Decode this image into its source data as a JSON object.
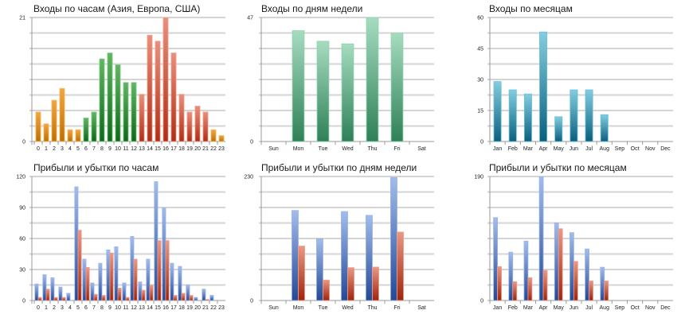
{
  "colors": {
    "orange_top": "#f2a640",
    "orange_bottom": "#c26e00",
    "orange_edge": "#f8c070",
    "green_top": "#62b562",
    "green_bottom": "#0b6a1a",
    "green_edge": "#8fd08f",
    "red_top": "#e98f7c",
    "red_bottom": "#b32d12",
    "red_edge": "#f3a898",
    "mint_top": "#a6dcc0",
    "mint_bottom": "#2e8058",
    "mint_edge": "#8ad4ac",
    "teal_top": "#84cde0",
    "teal_bottom": "#0a5f7e",
    "teal_edge": "#6cc0d8",
    "blue_top": "#a2bcec",
    "blue_bottom": "#234896",
    "blue_edge": "#9ab4e8",
    "loss_top": "#ea9884",
    "loss_bottom": "#9e250e",
    "loss_edge": "#f0a090",
    "grid_dark": "#a8a8a8",
    "grid_light": "#d4d4d4",
    "axis": "#999999"
  },
  "chart_data": [
    {
      "type": "bar",
      "title": "Входы по часам (Азия, Европа, США)",
      "xlabel": "",
      "ylabel": "",
      "categories": [
        "0",
        "1",
        "2",
        "3",
        "4",
        "5",
        "6",
        "7",
        "8",
        "9",
        "10",
        "11",
        "12",
        "13",
        "14",
        "15",
        "16",
        "17",
        "18",
        "19",
        "20",
        "21",
        "22",
        "23"
      ],
      "values": [
        5,
        3,
        7,
        9,
        2,
        2,
        4,
        5,
        14,
        15,
        13,
        10,
        10,
        8,
        18,
        17,
        21,
        15,
        8,
        5,
        6,
        5,
        2,
        1
      ],
      "bar_color_groups": [
        "orange",
        "orange",
        "orange",
        "orange",
        "orange",
        "orange",
        "green",
        "green",
        "green",
        "green",
        "green",
        "green",
        "green",
        "red",
        "red",
        "red",
        "red",
        "red",
        "red",
        "red",
        "red",
        "red",
        "orange",
        "orange"
      ],
      "legend": [
        "Азия",
        "Европа",
        "США"
      ],
      "ylim": [
        0,
        21
      ],
      "y_tick_labels": [
        "0",
        "21"
      ],
      "grid": true
    },
    {
      "type": "bar",
      "title": "Входы по дням недели",
      "xlabel": "",
      "ylabel": "",
      "categories": [
        "Sun",
        "Mon",
        "Tue",
        "Wed",
        "Thu",
        "Fri",
        "Sat"
      ],
      "values": [
        0,
        42,
        38,
        37,
        47,
        41,
        0
      ],
      "ylim": [
        0,
        47
      ],
      "y_tick_labels": [
        "0",
        "47"
      ],
      "grid": true
    },
    {
      "type": "bar",
      "title": "Входы по месяцам",
      "xlabel": "",
      "ylabel": "",
      "categories": [
        "Jan",
        "Feb",
        "Mar",
        "Apr",
        "May",
        "Jun",
        "Jul",
        "Aug",
        "Sep",
        "Oct",
        "Nov",
        "Dec"
      ],
      "values": [
        29,
        25,
        23,
        53,
        12,
        25,
        25,
        13,
        0,
        0,
        0,
        0
      ],
      "ylim": [
        0,
        60
      ],
      "y_tick_labels": [
        "0",
        "15",
        "30",
        "45",
        "60"
      ],
      "grid": true
    },
    {
      "type": "bar",
      "title": "Прибыли и убытки по часам",
      "xlabel": "",
      "ylabel": "",
      "categories": [
        "0",
        "1",
        "2",
        "3",
        "4",
        "5",
        "6",
        "7",
        "8",
        "9",
        "10",
        "11",
        "12",
        "13",
        "14",
        "15",
        "16",
        "17",
        "18",
        "19",
        "20",
        "21",
        "22",
        "23"
      ],
      "series": [
        {
          "name": "Прибыли",
          "values": [
            16,
            25,
            22,
            13,
            7,
            110,
            40,
            17,
            36,
            49,
            52,
            17,
            62,
            18,
            40,
            115,
            90,
            36,
            33,
            15,
            3,
            11,
            5,
            0
          ]
        },
        {
          "name": "Убытки",
          "values": [
            3,
            11,
            3,
            3,
            0,
            68,
            32,
            6,
            5,
            46,
            12,
            3,
            40,
            10,
            15,
            58,
            58,
            5,
            7,
            5,
            0,
            1,
            0,
            0
          ]
        }
      ],
      "ylim": [
        0,
        120
      ],
      "y_tick_labels": [
        "0",
        "30",
        "60",
        "90",
        "120"
      ],
      "grid": true
    },
    {
      "type": "bar",
      "title": "Прибыли и убытки по дням недели",
      "xlabel": "",
      "ylabel": "",
      "categories": [
        "Sun",
        "Mon",
        "Tue",
        "Wed",
        "Thu",
        "Fri",
        "Sat"
      ],
      "series": [
        {
          "name": "Прибыли",
          "values": [
            0,
            167,
            114,
            165,
            158,
            228,
            0
          ]
        },
        {
          "name": "Убытки",
          "values": [
            0,
            101,
            38,
            61,
            62,
            127,
            0
          ]
        }
      ],
      "ylim": [
        0,
        230
      ],
      "y_tick_labels": [
        "0",
        "230"
      ],
      "grid": true
    },
    {
      "type": "bar",
      "title": "Прибыли и убытки по месяцам",
      "xlabel": "",
      "ylabel": "",
      "categories": [
        "Jan",
        "Feb",
        "Mar",
        "Apr",
        "May",
        "Jun",
        "Jul",
        "Aug",
        "Sep",
        "Oct",
        "Nov",
        "Dec"
      ],
      "series": [
        {
          "name": "Прибыли",
          "values": [
            127,
            74,
            91,
            190,
            119,
            104,
            79,
            51,
            0,
            0,
            0,
            0
          ]
        },
        {
          "name": "Убытки",
          "values": [
            52,
            29,
            35,
            46,
            110,
            60,
            30,
            30,
            0,
            0,
            0,
            0
          ]
        }
      ],
      "ylim": [
        0,
        190
      ],
      "y_tick_labels": [
        "0",
        "190"
      ],
      "grid": true
    }
  ]
}
